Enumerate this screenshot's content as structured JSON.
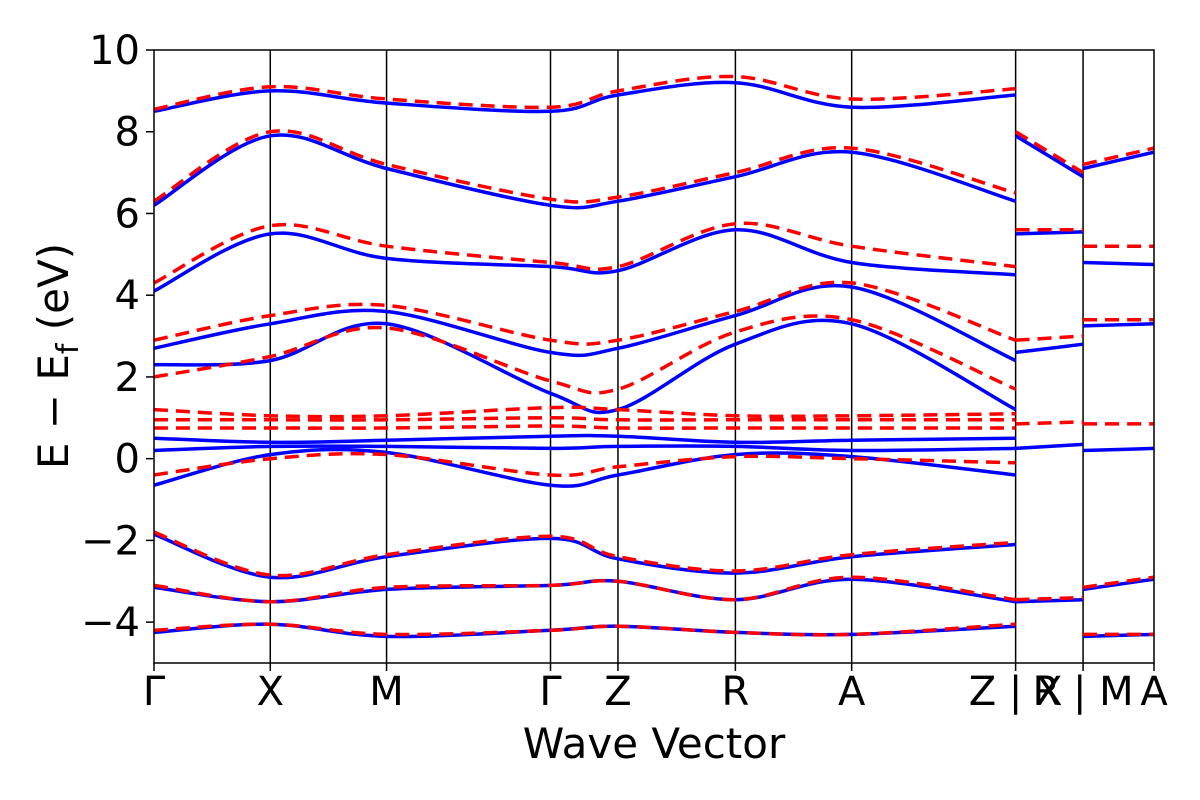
{
  "chart_data": {
    "type": "line",
    "title": "",
    "xlabel": "Wave Vector",
    "ylabel": "E − E_f (eV)",
    "ylabel_main": "E − E",
    "ylabel_sub": "f",
    "ylabel_unit": " (eV)",
    "ylim": [
      -5,
      10
    ],
    "yticks": [
      -4,
      -2,
      0,
      2,
      4,
      6,
      8,
      10
    ],
    "ytick_labels": [
      "−4",
      "−2",
      "0",
      "2",
      "4",
      "6",
      "8",
      "10"
    ],
    "xlim": [
      0,
      8.6
    ],
    "kpoints": [
      {
        "label": "Γ",
        "x": 0
      },
      {
        "label": "X",
        "x": 1.0
      },
      {
        "label": "M",
        "x": 2.0
      },
      {
        "label": "Γ",
        "x": 3.41
      },
      {
        "label": "Z",
        "x": 3.99
      },
      {
        "label": "R",
        "x": 5.0
      },
      {
        "label": "A",
        "x": 6.0
      },
      {
        "label": "Z | X",
        "x": 7.41
      },
      {
        "label": "R | M",
        "x": 7.99
      },
      {
        "label": "A",
        "x": 8.6
      }
    ],
    "colors": {
      "series_solid": "#0000ff",
      "series_dashed": "#ff0000"
    },
    "series": [
      {
        "style": "solid",
        "color": "#0000ff",
        "bands": [
          {
            "x": [
              0,
              1.0,
              2.0,
              3.41,
              3.99,
              5.0,
              6.0,
              7.41
            ],
            "y": [
              -4.25,
              -4.05,
              -4.35,
              -4.2,
              -4.1,
              -4.25,
              -4.3,
              -4.1
            ]
          },
          {
            "x": [
              0,
              1.0,
              2.0,
              3.41,
              3.99,
              5.0,
              6.0,
              7.41
            ],
            "y": [
              -3.15,
              -3.5,
              -3.2,
              -3.1,
              -3.0,
              -3.45,
              -2.95,
              -3.5
            ]
          },
          {
            "x": [
              0,
              1.0,
              2.0,
              3.41,
              3.99,
              5.0,
              6.0,
              7.41
            ],
            "y": [
              -1.85,
              -2.9,
              -2.4,
              -1.95,
              -2.45,
              -2.8,
              -2.4,
              -2.1
            ]
          },
          {
            "x": [
              0,
              1.0,
              2.0,
              3.41,
              3.99,
              5.0,
              6.0,
              7.41
            ],
            "y": [
              -0.65,
              0.1,
              0.15,
              -0.65,
              -0.4,
              0.1,
              0.05,
              -0.4
            ]
          },
          {
            "x": [
              0,
              1.0,
              2.0,
              3.41,
              3.99,
              5.0,
              6.0,
              7.41
            ],
            "y": [
              0.2,
              0.3,
              0.3,
              0.25,
              0.3,
              0.3,
              0.2,
              0.25
            ]
          },
          {
            "x": [
              0,
              1.0,
              2.0,
              3.41,
              3.99,
              5.0,
              6.0,
              7.41
            ],
            "y": [
              0.5,
              0.4,
              0.45,
              0.55,
              0.55,
              0.4,
              0.45,
              0.5
            ]
          },
          {
            "x": [
              0,
              1.0,
              2.0,
              3.41,
              3.99,
              5.0,
              6.0,
              7.41
            ],
            "y": [
              2.3,
              2.4,
              3.3,
              1.6,
              1.2,
              2.8,
              3.3,
              1.2
            ]
          },
          {
            "x": [
              0,
              1.0,
              2.0,
              3.41,
              3.99,
              5.0,
              6.0,
              7.41
            ],
            "y": [
              2.7,
              3.3,
              3.6,
              2.6,
              2.7,
              3.5,
              4.2,
              2.4
            ]
          },
          {
            "x": [
              0,
              1.0,
              2.0,
              3.41,
              3.99,
              5.0,
              6.0,
              7.41
            ],
            "y": [
              4.1,
              5.5,
              4.9,
              4.7,
              4.6,
              5.6,
              4.8,
              4.5
            ]
          },
          {
            "x": [
              0,
              1.0,
              2.0,
              3.41,
              3.99,
              5.0,
              6.0,
              7.41
            ],
            "y": [
              6.2,
              7.9,
              7.1,
              6.2,
              6.3,
              6.9,
              7.5,
              6.3
            ]
          },
          {
            "x": [
              0,
              1.0,
              2.0,
              3.41,
              3.99,
              5.0,
              6.0,
              7.41
            ],
            "y": [
              8.5,
              9.0,
              8.7,
              8.5,
              8.9,
              9.2,
              8.6,
              8.9
            ]
          },
          {
            "x": [
              7.41,
              7.99
            ],
            "y": [
              -3.5,
              -3.45
            ]
          },
          {
            "x": [
              7.41,
              7.99
            ],
            "y": [
              0.25,
              0.35
            ]
          },
          {
            "x": [
              7.41,
              7.99
            ],
            "y": [
              2.6,
              2.8
            ]
          },
          {
            "x": [
              7.41,
              7.99
            ],
            "y": [
              5.5,
              5.55
            ]
          },
          {
            "x": [
              7.41,
              7.99
            ],
            "y": [
              7.9,
              6.9
            ]
          },
          {
            "x": [
              7.99,
              8.6
            ],
            "y": [
              -4.35,
              -4.3
            ]
          },
          {
            "x": [
              7.99,
              8.6
            ],
            "y": [
              -3.2,
              -2.95
            ]
          },
          {
            "x": [
              7.99,
              8.6
            ],
            "y": [
              0.2,
              0.25
            ]
          },
          {
            "x": [
              7.99,
              8.6
            ],
            "y": [
              3.25,
              3.3
            ]
          },
          {
            "x": [
              7.99,
              8.6
            ],
            "y": [
              4.8,
              4.75
            ]
          },
          {
            "x": [
              7.99,
              8.6
            ],
            "y": [
              7.1,
              7.5
            ]
          }
        ]
      },
      {
        "style": "dashed",
        "color": "#ff0000",
        "bands": [
          {
            "x": [
              0,
              1.0,
              2.0,
              3.41,
              3.99,
              5.0,
              6.0,
              7.41
            ],
            "y": [
              -4.2,
              -4.05,
              -4.3,
              -4.2,
              -4.1,
              -4.25,
              -4.3,
              -4.05
            ]
          },
          {
            "x": [
              0,
              1.0,
              2.0,
              3.41,
              3.99,
              5.0,
              6.0,
              7.41
            ],
            "y": [
              -3.1,
              -3.5,
              -3.15,
              -3.1,
              -3.0,
              -3.45,
              -2.9,
              -3.45
            ]
          },
          {
            "x": [
              0,
              1.0,
              2.0,
              3.41,
              3.99,
              5.0,
              6.0,
              7.41
            ],
            "y": [
              -1.8,
              -2.85,
              -2.35,
              -1.9,
              -2.4,
              -2.75,
              -2.35,
              -2.05
            ]
          },
          {
            "x": [
              0,
              1.0,
              2.0,
              3.41,
              3.99,
              5.0,
              6.0,
              7.41
            ],
            "y": [
              -0.4,
              0.0,
              0.1,
              -0.4,
              -0.2,
              0.05,
              0.0,
              -0.1
            ]
          },
          {
            "x": [
              0,
              1.0,
              2.0,
              3.41,
              3.99,
              5.0,
              6.0,
              7.41
            ],
            "y": [
              0.75,
              0.75,
              0.75,
              0.8,
              0.75,
              0.75,
              0.75,
              0.75
            ]
          },
          {
            "x": [
              0,
              1.0,
              2.0,
              3.41,
              3.99,
              5.0,
              6.0,
              7.41
            ],
            "y": [
              0.95,
              0.95,
              0.95,
              1.0,
              0.95,
              0.95,
              0.95,
              0.95
            ]
          },
          {
            "x": [
              0,
              1.0,
              2.0,
              3.41,
              3.99,
              5.0,
              6.0,
              7.41
            ],
            "y": [
              1.2,
              1.05,
              1.05,
              1.25,
              1.2,
              1.05,
              1.05,
              1.1
            ]
          },
          {
            "x": [
              0,
              1.0,
              2.0,
              3.41,
              3.99,
              5.0,
              6.0,
              7.41
            ],
            "y": [
              2.0,
              2.5,
              3.2,
              1.9,
              1.7,
              3.1,
              3.4,
              1.7
            ]
          },
          {
            "x": [
              0,
              1.0,
              2.0,
              3.41,
              3.99,
              5.0,
              6.0,
              7.41
            ],
            "y": [
              2.9,
              3.5,
              3.75,
              2.9,
              2.9,
              3.6,
              4.3,
              2.9
            ]
          },
          {
            "x": [
              0,
              1.0,
              2.0,
              3.41,
              3.99,
              5.0,
              6.0,
              7.41
            ],
            "y": [
              4.3,
              5.7,
              5.2,
              4.8,
              4.7,
              5.75,
              5.2,
              4.7
            ]
          },
          {
            "x": [
              0,
              1.0,
              2.0,
              3.41,
              3.99,
              5.0,
              6.0,
              7.41
            ],
            "y": [
              6.3,
              8.0,
              7.2,
              6.35,
              6.4,
              7.0,
              7.6,
              6.5
            ]
          },
          {
            "x": [
              0,
              1.0,
              2.0,
              3.41,
              3.99,
              5.0,
              6.0,
              7.41
            ],
            "y": [
              8.55,
              9.1,
              8.8,
              8.6,
              9.0,
              9.35,
              8.8,
              9.05
            ]
          },
          {
            "x": [
              7.41,
              7.99
            ],
            "y": [
              -3.45,
              -3.4
            ]
          },
          {
            "x": [
              7.41,
              7.99
            ],
            "y": [
              0.85,
              0.9
            ]
          },
          {
            "x": [
              7.41,
              7.99
            ],
            "y": [
              2.9,
              3.0
            ]
          },
          {
            "x": [
              7.41,
              7.99
            ],
            "y": [
              5.6,
              5.6
            ]
          },
          {
            "x": [
              7.41,
              7.99
            ],
            "y": [
              8.0,
              7.0
            ]
          },
          {
            "x": [
              7.99,
              8.6
            ],
            "y": [
              -4.3,
              -4.3
            ]
          },
          {
            "x": [
              7.99,
              8.6
            ],
            "y": [
              -3.15,
              -2.9
            ]
          },
          {
            "x": [
              7.99,
              8.6
            ],
            "y": [
              0.85,
              0.85
            ]
          },
          {
            "x": [
              7.99,
              8.6
            ],
            "y": [
              3.4,
              3.4
            ]
          },
          {
            "x": [
              7.99,
              8.6
            ],
            "y": [
              5.2,
              5.2
            ]
          },
          {
            "x": [
              7.99,
              8.6
            ],
            "y": [
              7.2,
              7.6
            ]
          }
        ]
      }
    ]
  }
}
